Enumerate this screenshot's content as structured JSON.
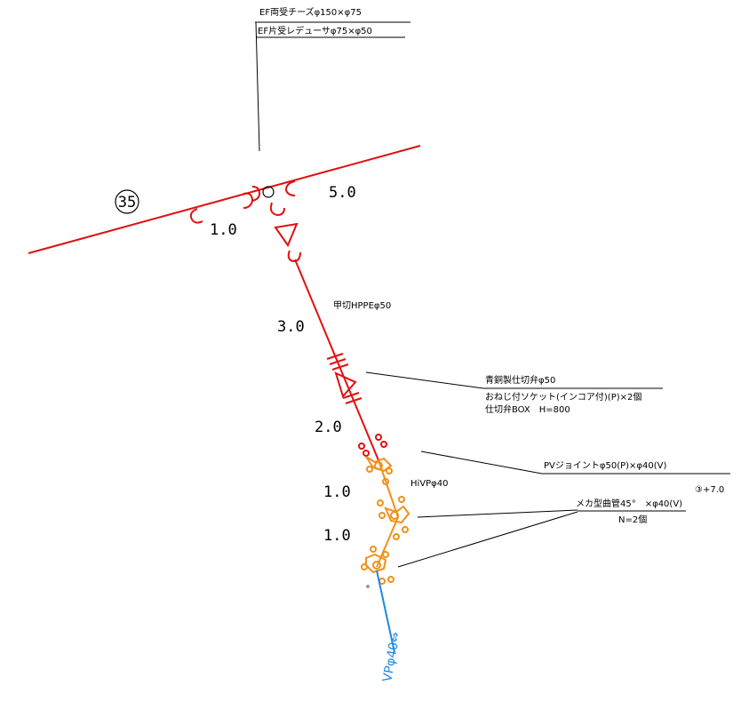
{
  "labels": {
    "ef_tee": "EF両受チーズφ150×φ75",
    "ef_reducer": "EF片受レデューサφ75×φ50",
    "node_number": "35",
    "pipe_hppe": "甲切HPPEφ50",
    "valve": "青銅製仕切弁φ50",
    "socket": "おねじ付ソケット(インコア付)(P)×2個",
    "valve_box": "仕切弁BOX　H=800",
    "hivp": "HiVPφ40",
    "pv_joint": "PVジョイントφ50(P)×φ40(V)",
    "bend_note": "③+7.0",
    "meka_bend": "メカ型曲管45°　×φ40(V)",
    "meka_count": "N=2個",
    "vp_pipe": "VPφ40⇔"
  },
  "dimensions": {
    "main_right": "5.0",
    "main_left": "1.0",
    "branch_1": "3.0",
    "branch_2": "2.0",
    "branch_3": "1.0",
    "branch_4": "1.0"
  },
  "colors": {
    "main_pipe": "#e01010",
    "hivp_pipe": "#f0901a",
    "vp_pipe": "#1e88e5",
    "leader": "#000000"
  }
}
